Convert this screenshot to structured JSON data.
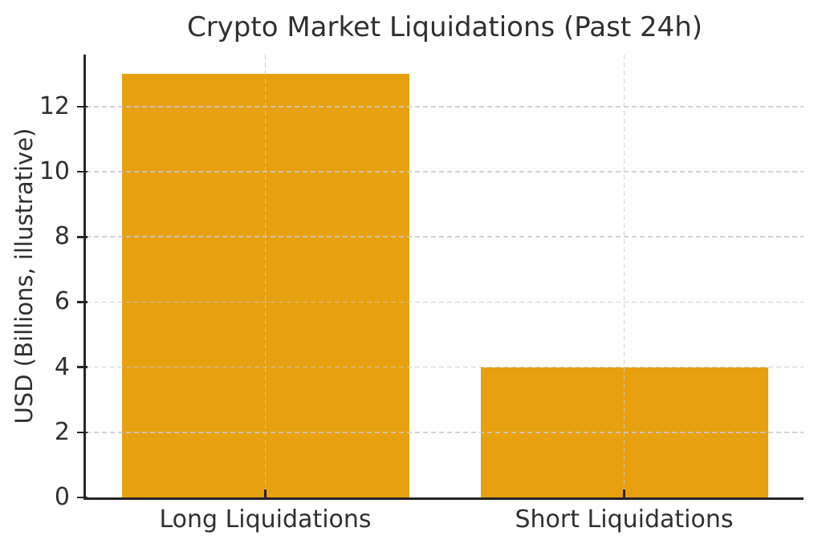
{
  "figure": {
    "background": "#ffffff",
    "text_color": "#303030"
  },
  "chart_data": {
    "type": "bar",
    "title": "Crypto Market Liquidations (Past 24h)",
    "xlabel": "",
    "ylabel": "USD (Billions, illustrative)",
    "categories": [
      "Long Liquidations",
      "Short Liquidations"
    ],
    "values": [
      13,
      4
    ],
    "yticks": [
      0,
      2,
      4,
      6,
      8,
      10,
      12
    ],
    "ylim": [
      0,
      13.6
    ],
    "bar_color": "#E6A010",
    "grid": true,
    "grid_style": "dashed",
    "grid_color": "#cbcbcb",
    "grid_above_bars": true,
    "axis_color": "#262626",
    "text_color": "#303030",
    "legend": "none"
  }
}
